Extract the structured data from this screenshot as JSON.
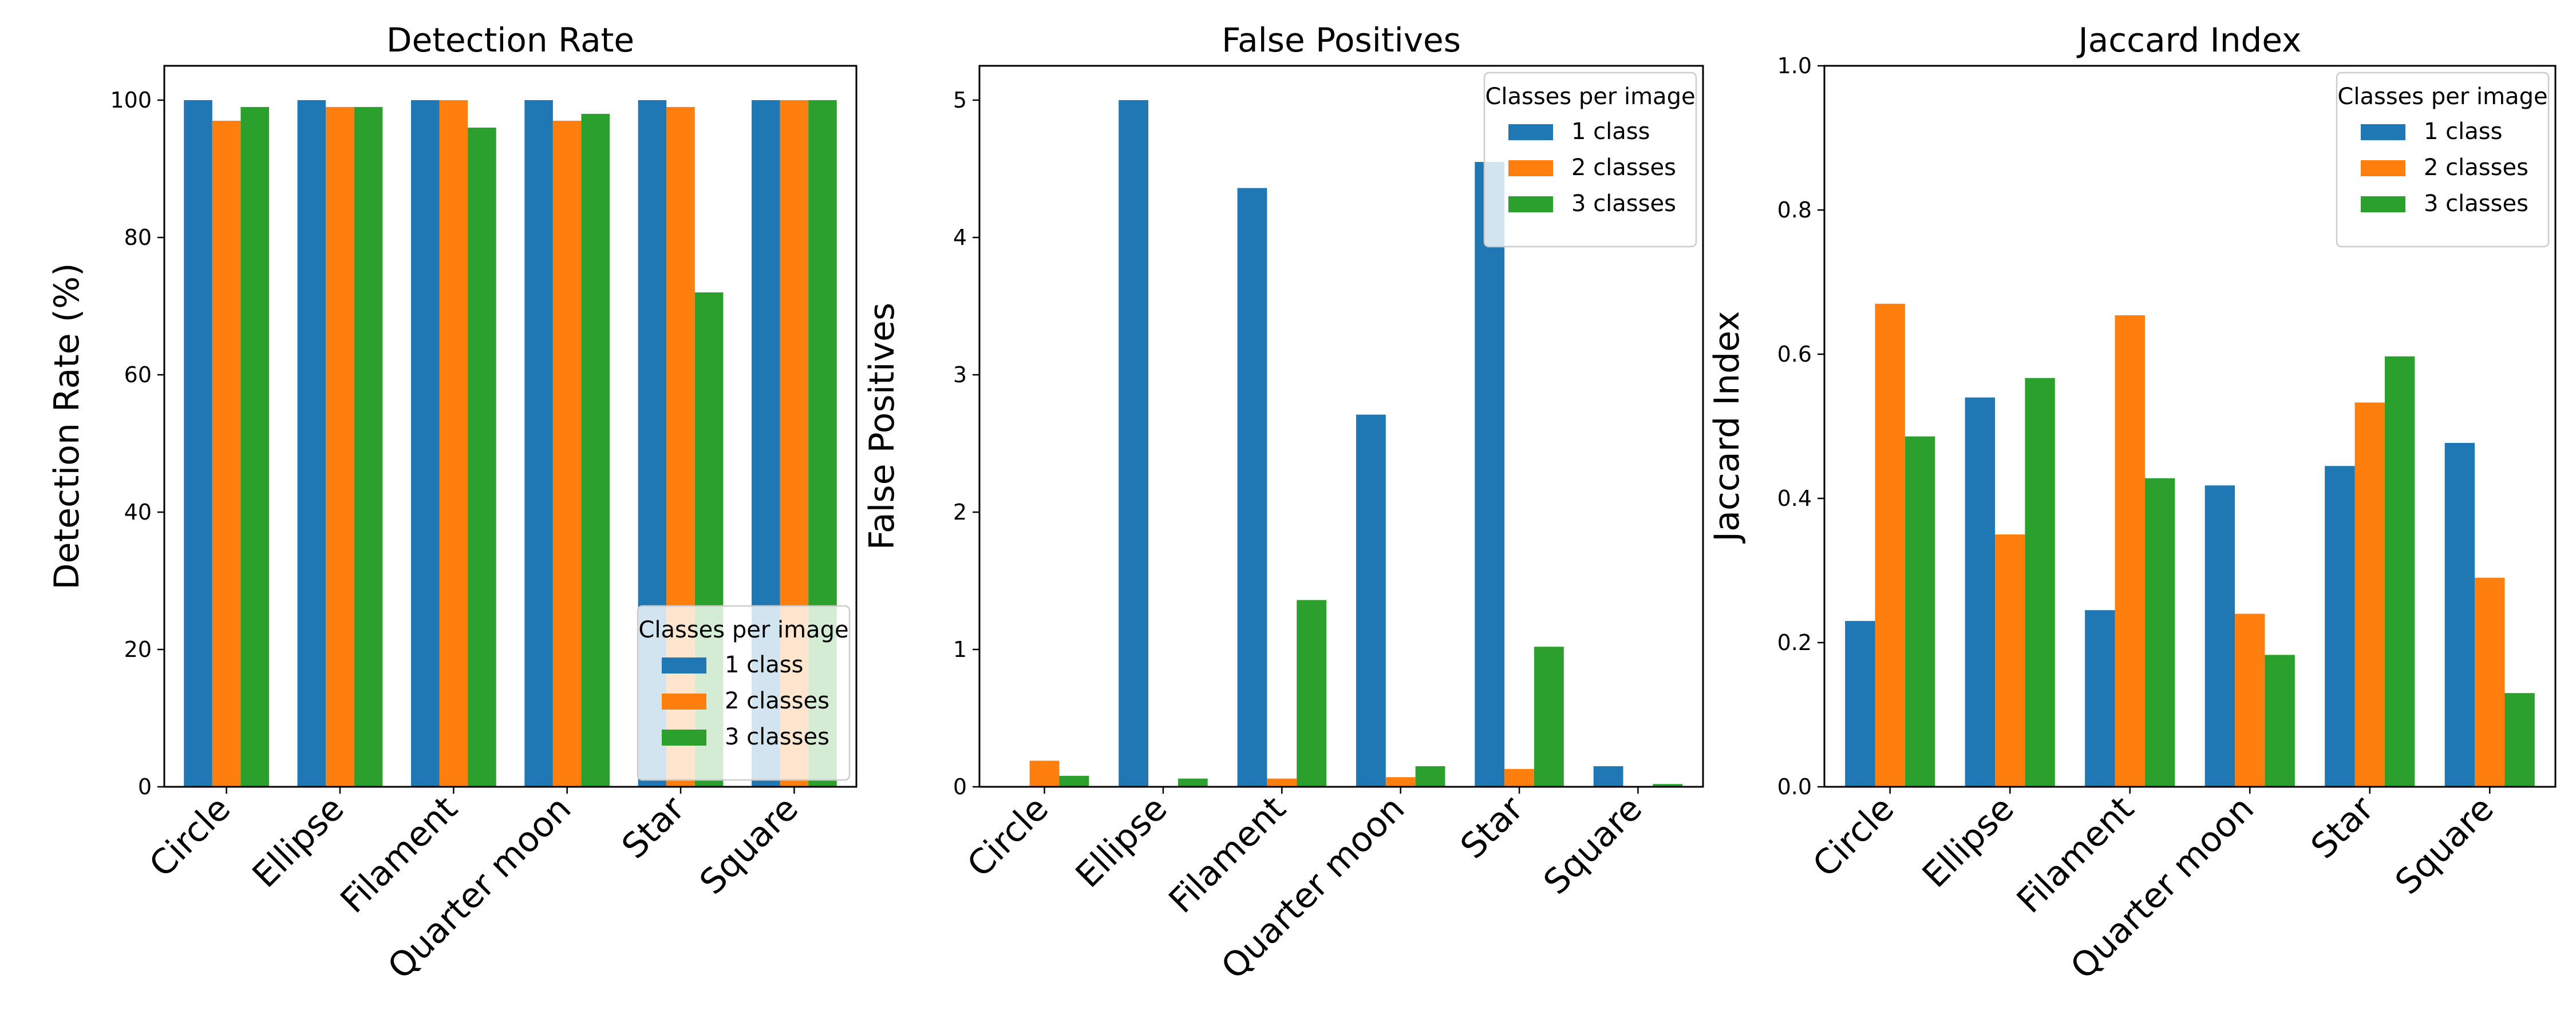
{
  "chart_data": [
    {
      "type": "bar",
      "title": "Detection Rate",
      "xlabel": "",
      "ylabel": "Detection Rate (%)",
      "ylim": [
        0,
        105
      ],
      "yticks": [
        "0",
        "20",
        "40",
        "60",
        "80",
        "100"
      ],
      "categories": [
        "Circle",
        "Ellipse",
        "Filament",
        "Quarter moon",
        "Star",
        "Square"
      ],
      "series": [
        {
          "name": "1 class",
          "color": "#1f77b4",
          "values": [
            100,
            100,
            100,
            100,
            100,
            100
          ]
        },
        {
          "name": "2 classes",
          "color": "#ff7f0e",
          "values": [
            97,
            99,
            100,
            97,
            99,
            100
          ]
        },
        {
          "name": "3 classes",
          "color": "#2ca02c",
          "values": [
            99,
            99,
            96,
            98,
            72,
            100
          ]
        }
      ],
      "legend": {
        "title": "Classes per image",
        "position": "lower-right"
      },
      "grid": false
    },
    {
      "type": "bar",
      "title": "False Positives",
      "xlabel": "",
      "ylabel": "False Positives",
      "ylim": [
        0,
        5.25
      ],
      "yticks": [
        "0",
        "1",
        "2",
        "3",
        "4",
        "5"
      ],
      "categories": [
        "Circle",
        "Ellipse",
        "Filament",
        "Quarter moon",
        "Star",
        "Square"
      ],
      "series": [
        {
          "name": "1 class",
          "color": "#1f77b4",
          "values": [
            0,
            5.0,
            4.36,
            2.71,
            4.55,
            0.15
          ]
        },
        {
          "name": "2 classes",
          "color": "#ff7f0e",
          "values": [
            0.19,
            0,
            0.06,
            0.07,
            0.13,
            0
          ]
        },
        {
          "name": "3 classes",
          "color": "#2ca02c",
          "values": [
            0.08,
            0.06,
            1.36,
            0.15,
            1.02,
            0.02
          ]
        }
      ],
      "legend": {
        "title": "Classes per image",
        "position": "upper-right"
      },
      "grid": false
    },
    {
      "type": "bar",
      "title": "Jaccard Index",
      "xlabel": "",
      "ylabel": "Jaccard Index",
      "ylim": [
        0,
        1.0
      ],
      "yticks": [
        "0.0",
        "0.2",
        "0.4",
        "0.6",
        "0.8",
        "1.0"
      ],
      "categories": [
        "Circle",
        "Ellipse",
        "Filament",
        "Quarter moon",
        "Star",
        "Square"
      ],
      "series": [
        {
          "name": "1 class",
          "color": "#1f77b4",
          "values": [
            0.23,
            0.54,
            0.245,
            0.418,
            0.445,
            0.477
          ]
        },
        {
          "name": "2 classes",
          "color": "#ff7f0e",
          "values": [
            0.67,
            0.35,
            0.654,
            0.24,
            0.533,
            0.29
          ]
        },
        {
          "name": "3 classes",
          "color": "#2ca02c",
          "values": [
            0.486,
            0.567,
            0.428,
            0.183,
            0.597,
            0.13
          ]
        }
      ],
      "legend": {
        "title": "Classes per image",
        "position": "upper-right"
      },
      "grid": false
    }
  ]
}
